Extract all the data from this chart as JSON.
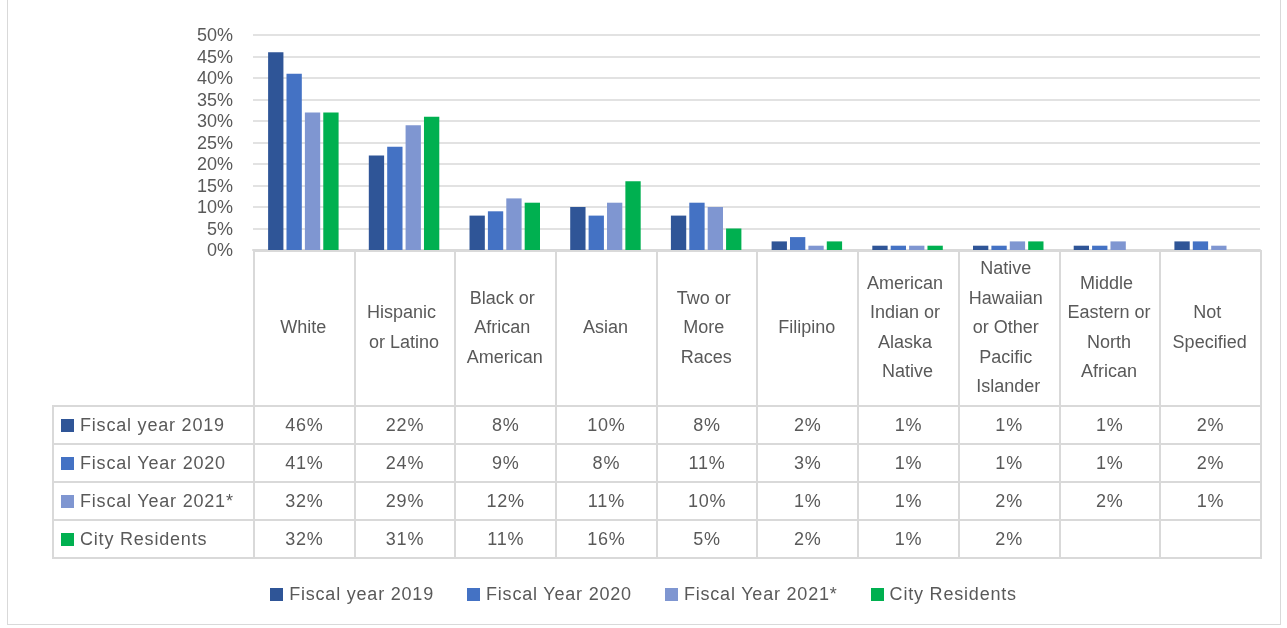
{
  "chart_data": {
    "type": "bar",
    "categories": [
      "White",
      "Hispanic or Latino",
      "Black or African American",
      "Asian",
      "Two or More Races",
      "Filipino",
      "American Indian or Alaska Native",
      "Native Hawaiian or Other Pacific Islander",
      "Middle Eastern or North African",
      "Not Specified"
    ],
    "series": [
      {
        "name": "Fiscal year 2019",
        "color": "#2f5597",
        "values": [
          46,
          22,
          8,
          10,
          8,
          2,
          1,
          1,
          1,
          2
        ],
        "value_labels": [
          "46%",
          "22%",
          "8%",
          "10%",
          "8%",
          "2%",
          "1%",
          "1%",
          "1%",
          "2%"
        ]
      },
      {
        "name": "Fiscal Year 2020",
        "color": "#4472c4",
        "values": [
          41,
          24,
          9,
          8,
          11,
          3,
          1,
          1,
          1,
          2
        ],
        "value_labels": [
          "41%",
          "24%",
          "9%",
          "8%",
          "11%",
          "3%",
          "1%",
          "1%",
          "1%",
          "2%"
        ]
      },
      {
        "name": "Fiscal Year 2021*",
        "color": "#7f96d1",
        "values": [
          32,
          29,
          12,
          11,
          10,
          1,
          1,
          2,
          2,
          1
        ],
        "value_labels": [
          "32%",
          "29%",
          "12%",
          "11%",
          "10%",
          "1%",
          "1%",
          "2%",
          "2%",
          "1%"
        ]
      },
      {
        "name": "City Residents",
        "color": "#00b050",
        "values": [
          32,
          31,
          11,
          16,
          5,
          2,
          1,
          2,
          null,
          null
        ],
        "value_labels": [
          "32%",
          "31%",
          "11%",
          "16%",
          "5%",
          "2%",
          "1%",
          "2%",
          null,
          null
        ]
      }
    ],
    "ylim": [
      0,
      50
    ],
    "yticks": [
      {
        "value": 0,
        "label": "0%"
      },
      {
        "value": 5,
        "label": "5%"
      },
      {
        "value": 10,
        "label": "10%"
      },
      {
        "value": 15,
        "label": "15%"
      },
      {
        "value": 20,
        "label": "20%"
      },
      {
        "value": 25,
        "label": "25%"
      },
      {
        "value": 30,
        "label": "30%"
      },
      {
        "value": 35,
        "label": "35%"
      },
      {
        "value": 40,
        "label": "40%"
      },
      {
        "value": 45,
        "label": "45%"
      },
      {
        "value": 50,
        "label": "50%"
      }
    ],
    "grid": "y",
    "legend": "bottom"
  }
}
